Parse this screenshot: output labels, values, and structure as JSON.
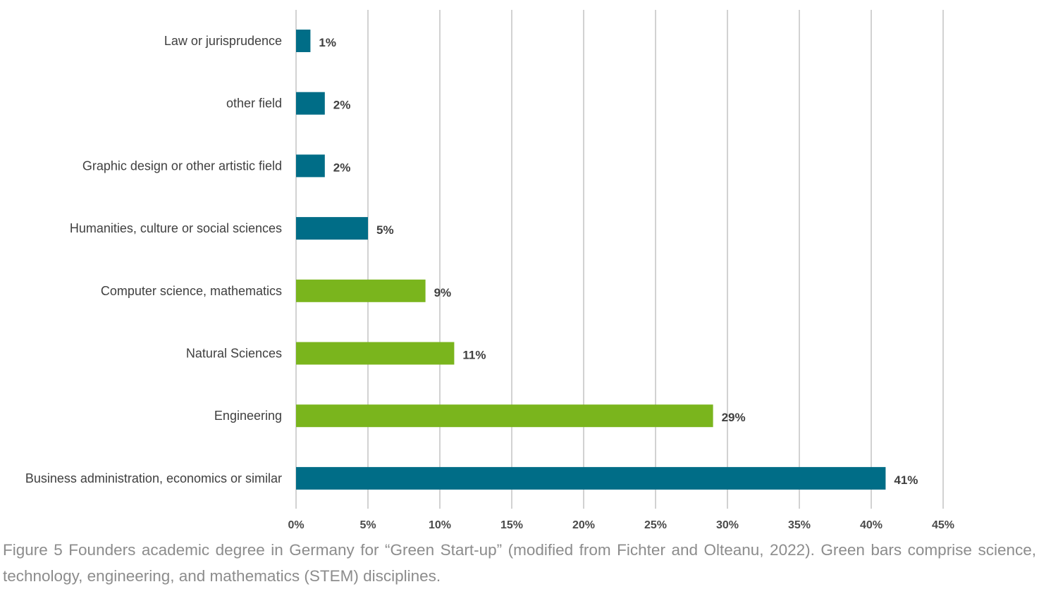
{
  "chart_data": {
    "type": "bar",
    "orientation": "horizontal",
    "categories": [
      "Law or jurisprudence",
      "other field",
      "Graphic design or other artistic field",
      "Humanities, culture or social sciences",
      "Computer science, mathematics",
      "Natural Sciences",
      "Engineering",
      "Business administration, economics or similar"
    ],
    "values": [
      1,
      2,
      2,
      5,
      9,
      11,
      29,
      41
    ],
    "data_labels": [
      "1%",
      "2%",
      "2%",
      "5%",
      "9%",
      "11%",
      "29%",
      "41%"
    ],
    "bar_colors": [
      "#006d87",
      "#006d87",
      "#006d87",
      "#006d87",
      "#7ab51d",
      "#7ab51d",
      "#7ab51d",
      "#006d87"
    ],
    "xlim": [
      0,
      45
    ],
    "x_ticks": [
      0,
      5,
      10,
      15,
      20,
      25,
      30,
      35,
      40,
      45
    ],
    "x_tick_labels": [
      "0%",
      "5%",
      "10%",
      "15%",
      "20%",
      "25%",
      "30%",
      "35%",
      "40%",
      "45%"
    ],
    "grid": "vertical",
    "legend": "none",
    "title": "",
    "xlabel": "",
    "ylabel": ""
  },
  "caption": {
    "text": "Figure 5 Founders academic degree in Germany for “Green Start-up” (modified from Fichter and Olteanu, 2022). Green bars comprise science, technology, engineering, and mathematics (STEM) disciplines."
  },
  "colors": {
    "blue_bar": "#006d87",
    "green_bar": "#7ab51d",
    "caption_text": "#8c8c8c"
  }
}
